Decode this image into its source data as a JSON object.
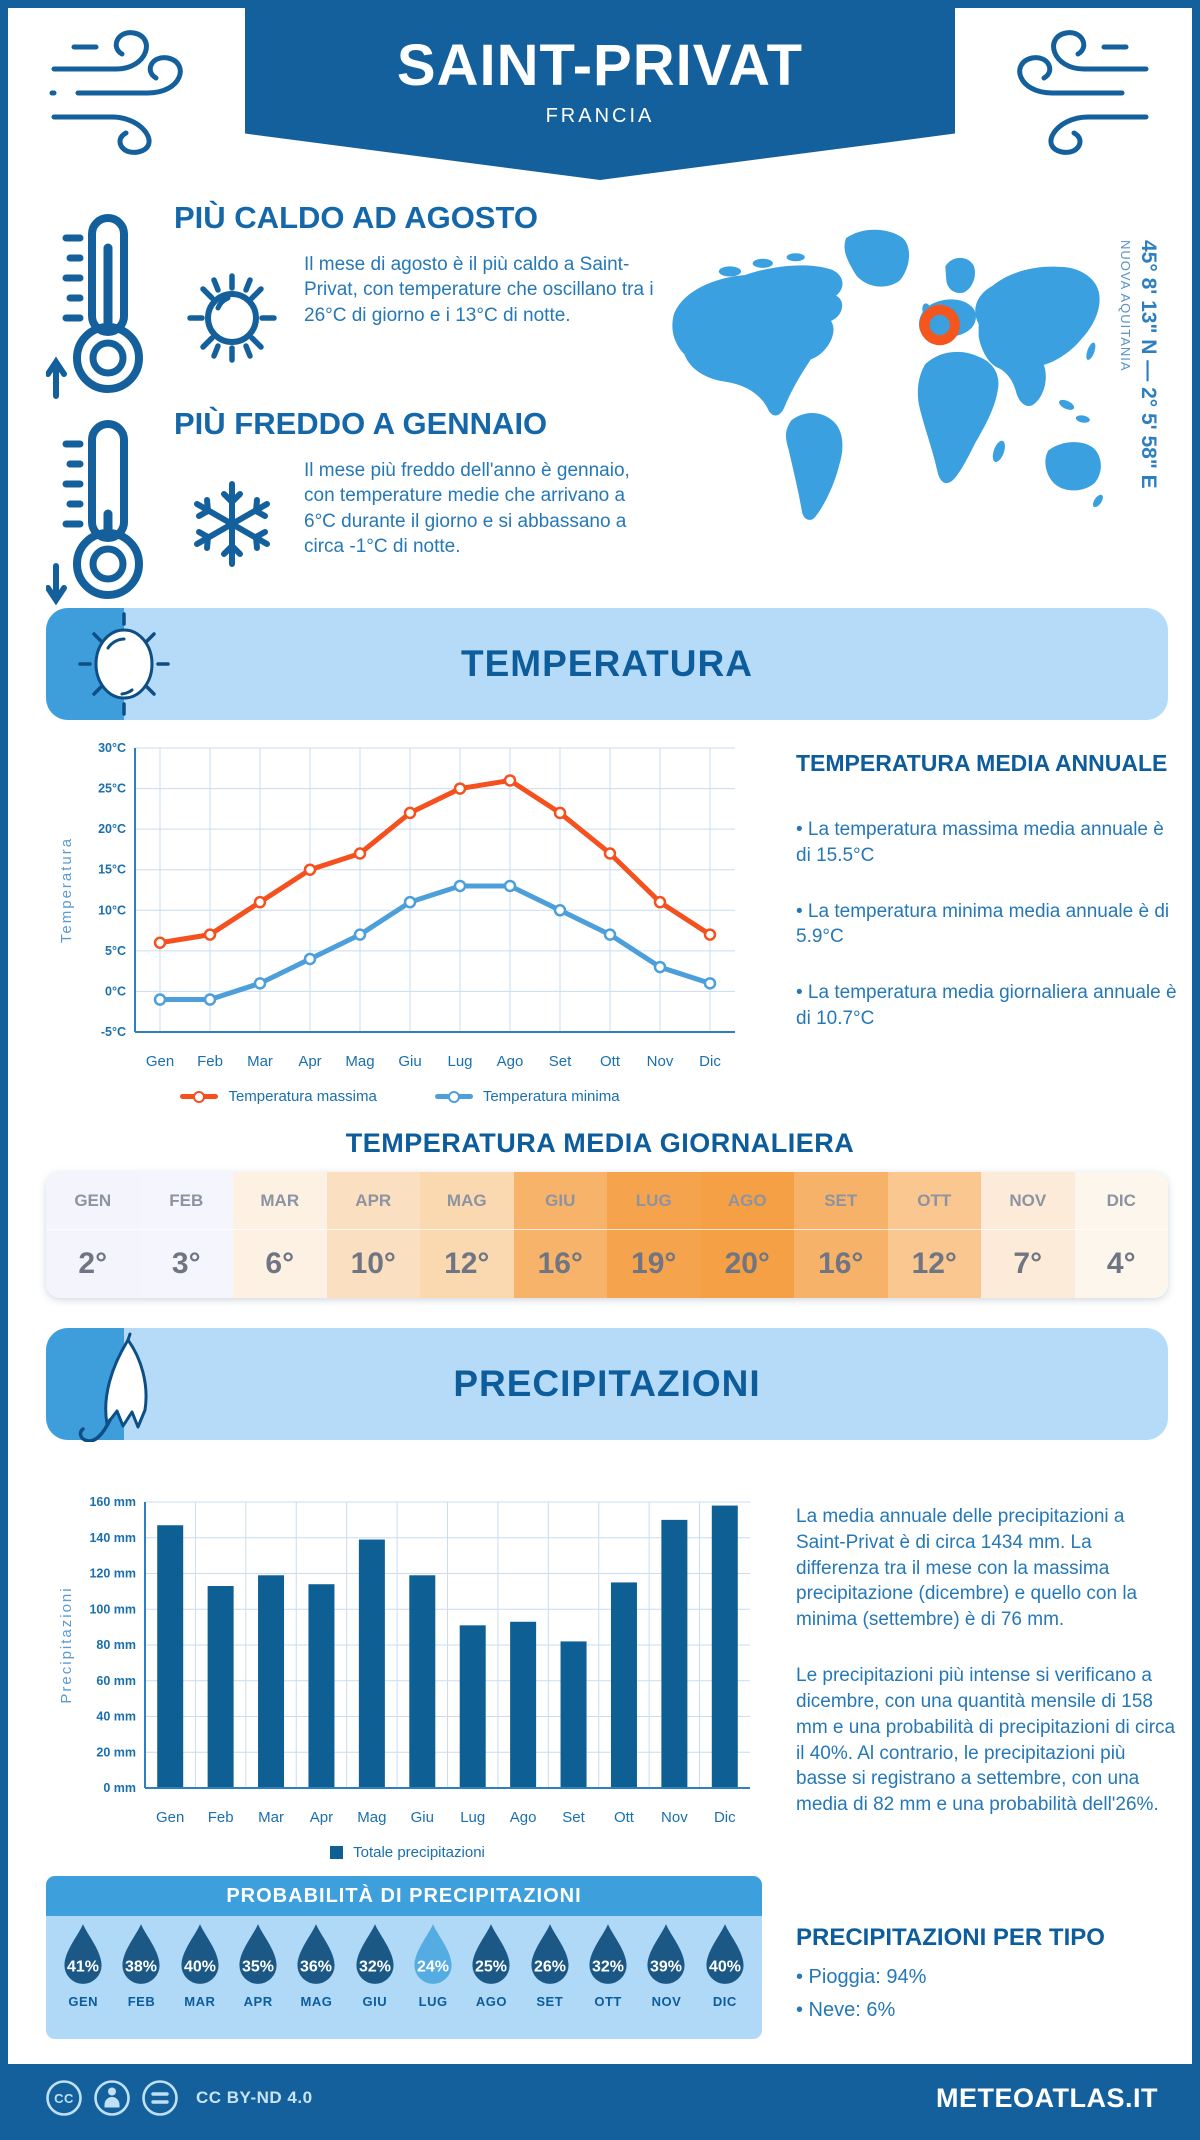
{
  "header": {
    "title": "SAINT-PRIVAT",
    "subtitle": "FRANCIA"
  },
  "highlights": {
    "hot": {
      "title": "PIÙ CALDO AD AGOSTO",
      "text": "Il mese di agosto è il più caldo a Saint-Privat, con temperature che oscillano tra i 26°C di giorno e i 13°C di notte."
    },
    "cold": {
      "title": "PIÙ FREDDO A GENNAIO",
      "text": "Il mese più freddo dell'anno è gennaio, con temperature medie che arrivano a 6°C durante il giorno e si abbassano a circa -1°C di notte."
    }
  },
  "map": {
    "coordinates": "45° 8' 13\" N — 2° 5' 58\" E",
    "region": "NUOVA AQUITANIA"
  },
  "temperature_section": {
    "banner_title": "TEMPERATURA",
    "annual": {
      "title": "TEMPERATURA MEDIA ANNUALE",
      "bullets": [
        "• La temperatura massima media annuale è di 15.5°C",
        "• La temperatura minima media annuale è di 5.9°C",
        "• La temperatura media giornaliera annuale è di 10.7°C"
      ]
    }
  },
  "precipitation_section": {
    "banner_title": "PRECIPITAZIONI",
    "paragraphs": [
      "La media annuale delle precipitazioni a Saint-Privat è di circa 1434 mm. La differenza tra il mese con la massima precipitazione (dicembre) e quello con la minima (settembre) è di 76 mm.",
      "Le precipitazioni più intense si verificano a dicembre, con una quantità mensile di 158 mm e una probabilità di precipitazioni di circa il 40%. Al contrario, le precipitazioni più basse si registrano a settembre, con una media di 82 mm e una probabilità dell'26%."
    ],
    "per_tipo": {
      "title": "PRECIPITAZIONI PER TIPO",
      "bullets": [
        "• Pioggia: 94%",
        "• Neve: 6%"
      ]
    }
  },
  "footer": {
    "license": "CC BY-ND 4.0",
    "brand": "METEOATLAS.IT"
  },
  "colors": {
    "primary_blue": "#14609D",
    "banner_light_blue": "#B5DBF8",
    "tab_blue": "#3D9EDB",
    "heading_blue": "#0D5C9C",
    "text_blue": "#2578B8",
    "map_blue": "#3AA0DF",
    "marker_orange": "#F4561D",
    "line_max": "#F4511E",
    "line_min": "#4D9FDB",
    "bar_blue": "#0E5F94",
    "drop_dark": "#1C5886",
    "drop_light": "#55ACE3"
  },
  "chart_data": [
    {
      "type": "line",
      "title": "",
      "categories": [
        "Gen",
        "Feb",
        "Mar",
        "Apr",
        "Mag",
        "Giu",
        "Lug",
        "Ago",
        "Set",
        "Ott",
        "Nov",
        "Dic"
      ],
      "series": [
        {
          "name": "Temperatura massima",
          "color": "#F4511E",
          "values": [
            6,
            7,
            11,
            15,
            17,
            22,
            25,
            26,
            22,
            17,
            11,
            7
          ]
        },
        {
          "name": "Temperatura minima",
          "color": "#4D9FDB",
          "values": [
            -1,
            -1,
            1,
            4,
            7,
            11,
            13,
            13,
            10,
            7,
            3,
            1
          ]
        }
      ],
      "xlabel": "",
      "ylabel": "Temperatura",
      "ylim": [
        -5,
        30
      ],
      "ytick_step": 5,
      "ytick_suffix": "°C",
      "grid": true,
      "legend_position": "bottom"
    },
    {
      "type": "bar",
      "categories": [
        "Gen",
        "Feb",
        "Mar",
        "Apr",
        "Mag",
        "Giu",
        "Lug",
        "Ago",
        "Set",
        "Ott",
        "Nov",
        "Dic"
      ],
      "values": [
        147,
        113,
        119,
        114,
        139,
        119,
        91,
        93,
        82,
        115,
        150,
        158
      ],
      "legend": "Totale precipitazioni",
      "xlabel": "",
      "ylabel": "Precipitazioni",
      "ylim": [
        0,
        160
      ],
      "ytick_step": 20,
      "ytick_suffix": " mm",
      "bar_color": "#0E5F94",
      "grid": true,
      "legend_position": "bottom"
    },
    {
      "type": "pictogram",
      "title": "PROBABILITÀ DI PRECIPITAZIONI",
      "categories": [
        "GEN",
        "FEB",
        "MAR",
        "APR",
        "MAG",
        "GIU",
        "LUG",
        "AGO",
        "SET",
        "OTT",
        "NOV",
        "DIC"
      ],
      "values": [
        41,
        38,
        40,
        35,
        36,
        32,
        24,
        25,
        26,
        32,
        39,
        40
      ],
      "value_suffix": "%",
      "drop_colors": [
        "#1C5886",
        "#1C5886",
        "#1C5886",
        "#1C5886",
        "#1C5886",
        "#1C5886",
        "#55ACE3",
        "#1C5886",
        "#1C5886",
        "#1C5886",
        "#1C5886",
        "#1C5886"
      ]
    },
    {
      "type": "table",
      "title": "TEMPERATURA MEDIA GIORNALIERA",
      "categories": [
        "GEN",
        "FEB",
        "MAR",
        "APR",
        "MAG",
        "GIU",
        "LUG",
        "AGO",
        "SET",
        "OTT",
        "NOV",
        "DIC"
      ],
      "values": [
        2,
        3,
        6,
        10,
        12,
        16,
        19,
        20,
        16,
        12,
        7,
        4
      ],
      "value_suffix": "°",
      "cell_colors": [
        "#F3F4FC",
        "#F4F5FD",
        "#FCF1E3",
        "#FBDFC1",
        "#FAD8B0",
        "#F7B369",
        "#F6A34E",
        "#F5A044",
        "#F7B269",
        "#F9C78F",
        "#FCEBD9",
        "#FDF6EC"
      ]
    }
  ]
}
